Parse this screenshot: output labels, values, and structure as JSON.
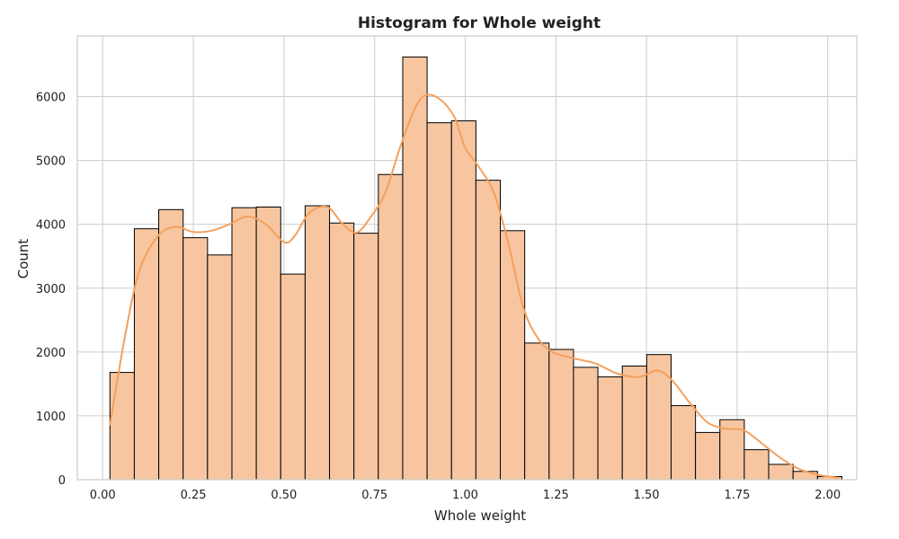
{
  "chart_data": {
    "type": "bar",
    "subtype": "histogram",
    "title": "Histogram for Whole weight",
    "xlabel": "Whole weight",
    "ylabel": "Count",
    "xlim": [
      -0.07,
      2.08
    ],
    "ylim": [
      0,
      6950
    ],
    "xticks": [
      0.0,
      0.25,
      0.5,
      0.75,
      1.0,
      1.25,
      1.5,
      1.75,
      2.0
    ],
    "xtick_labels": [
      "0.00",
      "0.25",
      "0.50",
      "0.75",
      "1.00",
      "1.25",
      "1.50",
      "1.75",
      "2.00"
    ],
    "yticks": [
      0,
      1000,
      2000,
      3000,
      4000,
      5000,
      6000
    ],
    "ytick_labels": [
      "0",
      "1000",
      "2000",
      "3000",
      "4000",
      "5000",
      "6000"
    ],
    "grid": true,
    "bins": {
      "start": 0.02,
      "width": 0.0673,
      "counts": [
        1680,
        3930,
        4230,
        3790,
        3520,
        4260,
        4270,
        3220,
        4290,
        4020,
        3860,
        4780,
        6620,
        5590,
        5620,
        4690,
        3900,
        2140,
        2040,
        1760,
        1610,
        1780,
        1960,
        1160,
        740,
        940,
        470,
        240,
        130,
        50
      ]
    },
    "kde": {
      "x": [
        0.02,
        0.06,
        0.1,
        0.15,
        0.2,
        0.25,
        0.3,
        0.35,
        0.4,
        0.45,
        0.5,
        0.53,
        0.57,
        0.62,
        0.66,
        0.7,
        0.74,
        0.78,
        0.82,
        0.86,
        0.89,
        0.93,
        0.97,
        1.0,
        1.04,
        1.08,
        1.12,
        1.16,
        1.2,
        1.24,
        1.3,
        1.36,
        1.42,
        1.48,
        1.53,
        1.57,
        1.62,
        1.67,
        1.72,
        1.77,
        1.82,
        1.87,
        1.92,
        1.97,
        2.03
      ],
      "y": [
        850,
        2200,
        3250,
        3800,
        3960,
        3880,
        3900,
        4000,
        4120,
        4000,
        3720,
        3820,
        4180,
        4270,
        4020,
        3870,
        4120,
        4500,
        5200,
        5800,
        6020,
        5960,
        5680,
        5200,
        4880,
        4480,
        3680,
        2700,
        2220,
        2000,
        1900,
        1820,
        1660,
        1610,
        1710,
        1560,
        1200,
        890,
        800,
        770,
        560,
        340,
        170,
        80,
        30
      ]
    },
    "colors": {
      "bar_fill": "#f7c6a0",
      "bar_edge": "#000000",
      "kde_line": "#f4a05d",
      "grid": "#cccccc",
      "background": "#ffffff"
    }
  }
}
